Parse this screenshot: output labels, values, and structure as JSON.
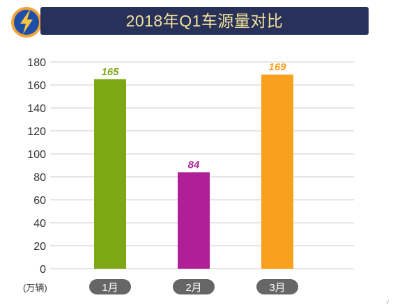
{
  "title": "2018年Q1车源量对比",
  "logo_icon": "lightning-bolt-icon",
  "colors": {
    "title_bar": "#27315a",
    "title_text": "#f5e39a",
    "logo_bg": "#1d4fa8",
    "logo_ring": "#f2a33a",
    "bolt": "#f6c343",
    "gridline": "#cccccc",
    "category_pill": "#666666",
    "category_text": "#ffffff"
  },
  "unit_label": "(万辆)",
  "corner_mark": "√",
  "chart_data": {
    "type": "bar",
    "title": "2018年Q1车源量对比",
    "categories": [
      "1月",
      "2月",
      "3月"
    ],
    "values": [
      165,
      84,
      169
    ],
    "value_labels": [
      "165",
      "84",
      "169"
    ],
    "bar_colors": [
      "#7ea716",
      "#b01f96",
      "#f9a11f"
    ],
    "ylabel": "(万辆)",
    "ylim": [
      0,
      180
    ],
    "yticks": [
      0,
      20,
      40,
      60,
      80,
      100,
      120,
      140,
      160,
      180
    ],
    "grid": true,
    "legend": "none"
  }
}
